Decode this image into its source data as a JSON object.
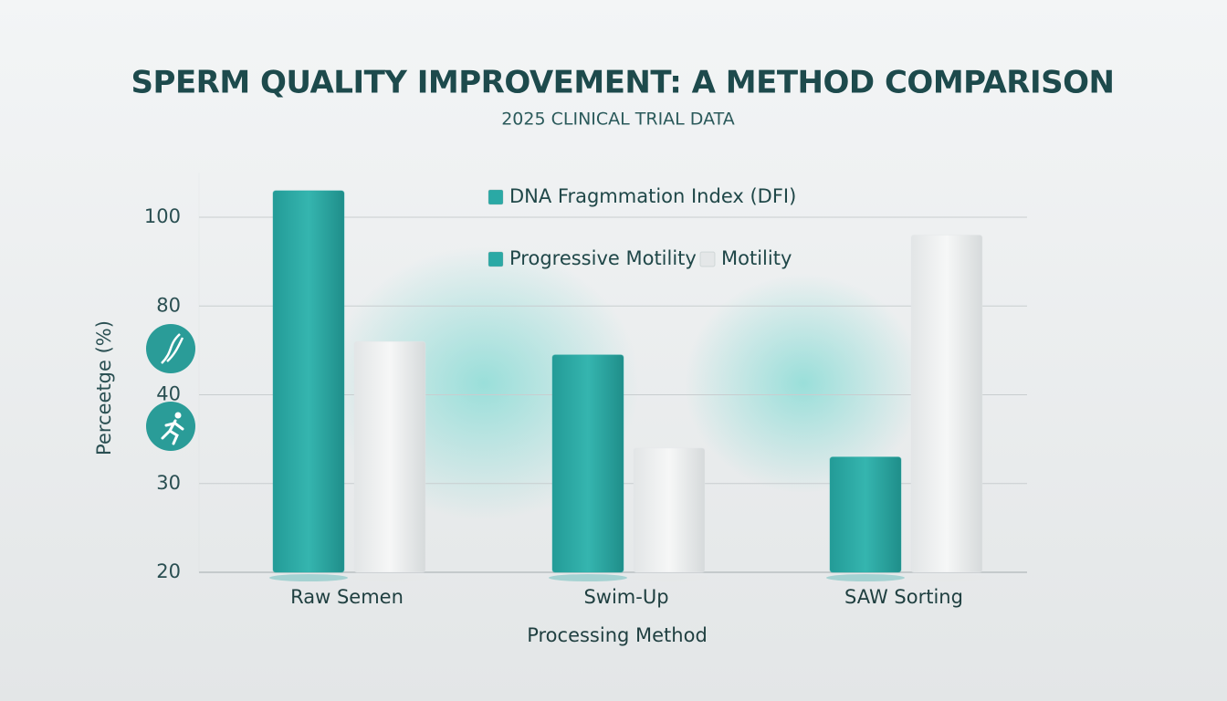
{
  "chart_data": {
    "type": "bar",
    "title": "SPERM QUALITY IMPROVEMENT: A METHOD COMPARISON",
    "subtitle": "2025 CLINICAL TRIAL DATA",
    "x_label": "Processing Method",
    "y_label": "Perceetge (%)",
    "categories": [
      "Raw Semen",
      "Swim-Up",
      "SAW Sorting"
    ],
    "series": [
      {
        "name": "DNA Fragmmation Index (DFI)",
        "color": "#2aa9a5",
        "values": [
          106,
          58,
          33
        ]
      },
      {
        "name": "Motility",
        "color": "#e4e7e8",
        "values": [
          64,
          34,
          96
        ]
      }
    ],
    "extra_legend": [
      {
        "name": "Progressive Motility",
        "color": "#2aa9a5"
      }
    ],
    "ylim": [
      20,
      110
    ],
    "yticks": [
      20,
      30,
      40,
      80,
      100
    ],
    "grid": true
  }
}
